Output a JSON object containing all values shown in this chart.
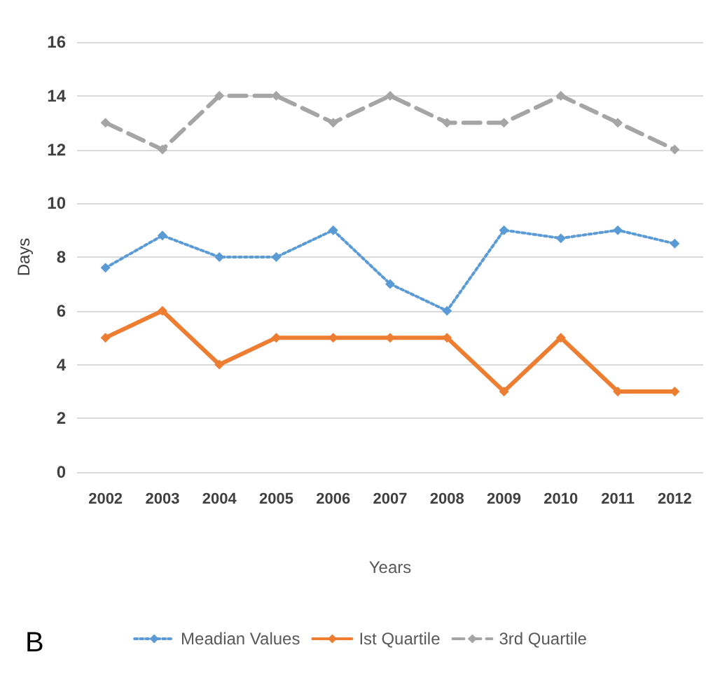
{
  "chart_data": {
    "type": "line",
    "xlabel": "Years",
    "ylabel": "Days",
    "annotations": [
      "B"
    ],
    "categories": [
      "2002",
      "2003",
      "2004",
      "2005",
      "2006",
      "2007",
      "2008",
      "2009",
      "2010",
      "2011",
      "2012"
    ],
    "series": [
      {
        "name": "Meadian Values",
        "color": "#5b9bd5",
        "line_style": "dotted",
        "values": [
          7.6,
          8.8,
          8,
          8,
          9,
          7,
          6,
          9,
          8.7,
          9,
          8.5
        ]
      },
      {
        "name": "Ist Quartile",
        "color": "#ed7d31",
        "line_style": "solid",
        "values": [
          5,
          6,
          4,
          5,
          5,
          5,
          5,
          3,
          5,
          3,
          3
        ]
      },
      {
        "name": "3rd Quartile",
        "color": "#a5a5a5",
        "line_style": "dashed",
        "values": [
          13,
          12,
          14,
          14,
          13,
          14,
          13,
          13,
          14,
          13,
          12
        ]
      }
    ],
    "ylim": [
      0,
      16
    ],
    "yticks": [
      0,
      2,
      4,
      6,
      8,
      10,
      12,
      14,
      16
    ],
    "grid": "y",
    "legend": "bottom",
    "marker": "diamond"
  }
}
